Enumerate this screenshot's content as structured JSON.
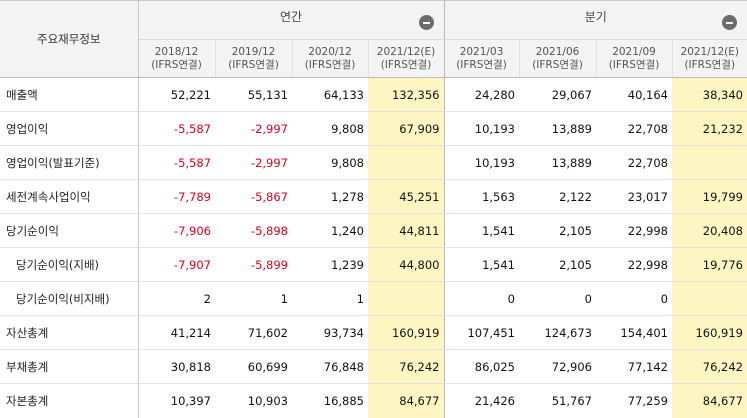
{
  "header": {
    "corner_label": "주요재무정보",
    "groups": [
      {
        "title": "연간",
        "collapse_icon": "minus-circle-icon"
      },
      {
        "title": "분기",
        "collapse_icon": "minus-circle-icon"
      }
    ],
    "periods": [
      {
        "date": "2018/12",
        "basis": "(IFRS연결)"
      },
      {
        "date": "2019/12",
        "basis": "(IFRS연결)"
      },
      {
        "date": "2020/12",
        "basis": "(IFRS연결)"
      },
      {
        "date": "2021/12(E)",
        "basis": "(IFRS연결)"
      },
      {
        "date": "2021/03",
        "basis": "(IFRS연결)"
      },
      {
        "date": "2021/06",
        "basis": "(IFRS연결)"
      },
      {
        "date": "2021/09",
        "basis": "(IFRS연결)"
      },
      {
        "date": "2021/12(E)",
        "basis": "(IFRS연결)"
      }
    ]
  },
  "colors": {
    "negative": "#e0001b",
    "estimate_bg": "#fdf6c3",
    "header_bg": "#f3f3f3"
  },
  "rows": [
    {
      "label": "매출액",
      "values": [
        "52,221",
        "55,131",
        "64,133",
        "132,356",
        "24,280",
        "29,067",
        "40,164",
        "38,340"
      ]
    },
    {
      "label": "영업이익",
      "values": [
        "-5,587",
        "-2,997",
        "9,808",
        "67,909",
        "10,193",
        "13,889",
        "22,708",
        "21,232"
      ]
    },
    {
      "label": "영업이익(발표기준)",
      "values": [
        "-5,587",
        "-2,997",
        "9,808",
        "",
        "10,193",
        "13,889",
        "22,708",
        ""
      ]
    },
    {
      "label": "세전계속사업이익",
      "values": [
        "-7,789",
        "-5,867",
        "1,278",
        "45,251",
        "1,563",
        "2,122",
        "23,017",
        "19,799"
      ]
    },
    {
      "label": "당기순이익",
      "values": [
        "-7,906",
        "-5,898",
        "1,240",
        "44,811",
        "1,541",
        "2,105",
        "22,998",
        "20,408"
      ]
    },
    {
      "label": "당기순이익(지배)",
      "values": [
        "-7,907",
        "-5,899",
        "1,239",
        "44,800",
        "1,541",
        "2,105",
        "22,998",
        "19,776"
      ]
    },
    {
      "label": "당기순이익(비지배)",
      "values": [
        "2",
        "1",
        "1",
        "",
        "0",
        "0",
        "0",
        ""
      ]
    },
    {
      "label": "자산총계",
      "values": [
        "41,214",
        "71,602",
        "93,734",
        "160,919",
        "107,451",
        "124,673",
        "154,401",
        "160,919"
      ]
    },
    {
      "label": "부채총계",
      "values": [
        "30,818",
        "60,699",
        "76,848",
        "76,242",
        "86,025",
        "72,906",
        "77,142",
        "76,242"
      ]
    },
    {
      "label": "자본총계",
      "values": [
        "10,397",
        "10,903",
        "16,885",
        "84,677",
        "21,426",
        "51,767",
        "77,259",
        "84,677"
      ]
    }
  ]
}
